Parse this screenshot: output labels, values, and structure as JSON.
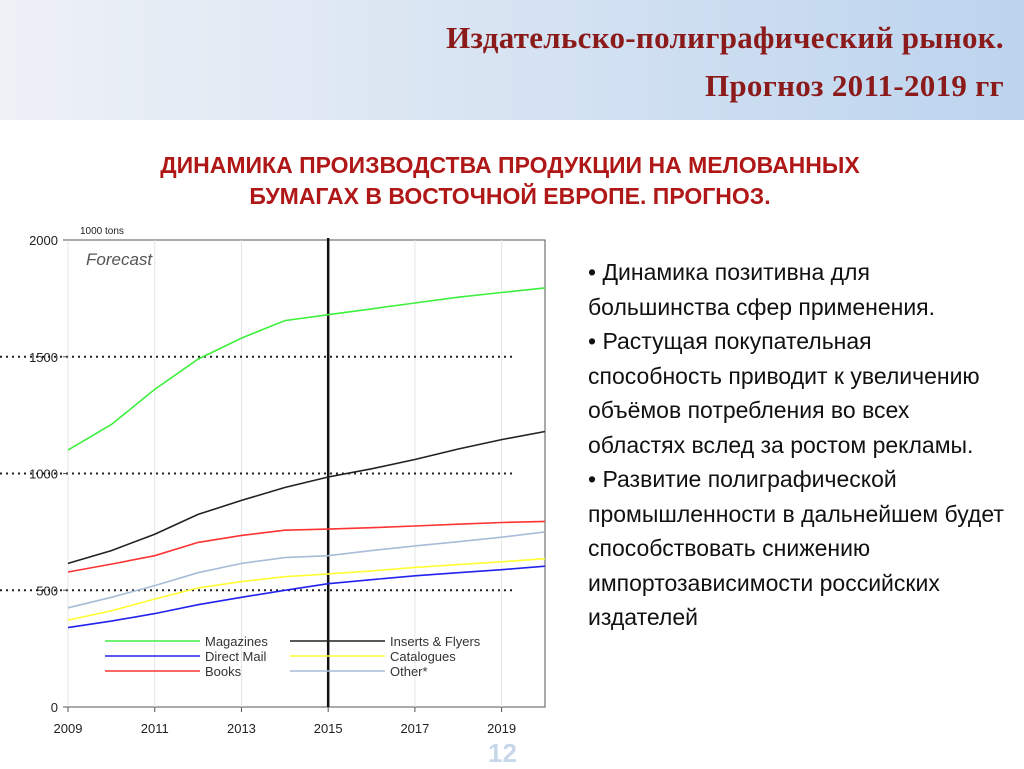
{
  "header": {
    "title_line1": "Издательско-полиграфический рынок.",
    "title_line2": "Прогноз 2011-2019 гг"
  },
  "subtitle": {
    "line1": "ДИНАМИКА ПРОИЗВОДСТВА ПРОДУКЦИИ НА МЕЛОВАННЫХ",
    "line2": "БУМАГАХ В ВОСТОЧНОЙ ЕВРОПЕ. ПРОГНОЗ."
  },
  "chart_data": {
    "type": "line",
    "ylabel": "1000 tons",
    "annotation": "Forecast",
    "xlim": [
      2009,
      2020
    ],
    "ylim": [
      0,
      2000
    ],
    "x_ticks": [
      2009,
      2011,
      2013,
      2015,
      2017,
      2019
    ],
    "y_ticks": [
      0,
      500,
      1000,
      1500,
      2000
    ],
    "dotted_grid_y": [
      500,
      1000,
      1500
    ],
    "forecast_start": 2015,
    "legend_position": "bottom",
    "x": [
      2009,
      2010,
      2011,
      2012,
      2013,
      2014,
      2015,
      2016,
      2017,
      2018,
      2019,
      2020
    ],
    "series": [
      {
        "name": "Magazines",
        "color": "#3ef03e",
        "values": [
          1100,
          1210,
          1360,
          1490,
          1580,
          1655,
          1680,
          1705,
          1730,
          1755,
          1775,
          1795
        ]
      },
      {
        "name": "Inserts & Flyers",
        "color": "#222222",
        "values": [
          615,
          670,
          740,
          825,
          885,
          940,
          985,
          1020,
          1060,
          1105,
          1145,
          1180
        ]
      },
      {
        "name": "Books",
        "color": "#ff3333",
        "values": [
          578,
          612,
          648,
          705,
          735,
          757,
          762,
          768,
          775,
          783,
          790,
          795
        ]
      },
      {
        "name": "Other*",
        "color": "#a8bcd8",
        "values": [
          425,
          470,
          520,
          575,
          615,
          640,
          648,
          670,
          690,
          708,
          727,
          750
        ]
      },
      {
        "name": "Catalogues",
        "color": "#ffff33",
        "values": [
          372,
          412,
          462,
          510,
          537,
          558,
          570,
          583,
          598,
          610,
          622,
          635
        ]
      },
      {
        "name": "Direct Mail",
        "color": "#2222ee",
        "values": [
          340,
          368,
          400,
          438,
          470,
          500,
          528,
          545,
          562,
          575,
          588,
          603
        ]
      }
    ],
    "legend_order": [
      "Magazines",
      "Direct Mail",
      "Books",
      "Inserts & Flyers",
      "Catalogues",
      "Other*"
    ]
  },
  "bullets": [
    "• Динамика позитивна для большинства сфер применения.",
    "• Растущая покупательная способность приводит к увеличению объёмов потребления во всех областях вслед за ростом рекламы.",
    "• Развитие полиграфической промышленности в дальнейшем будет способствовать снижению импортозависимости российских издателей"
  ],
  "page_number": "12"
}
